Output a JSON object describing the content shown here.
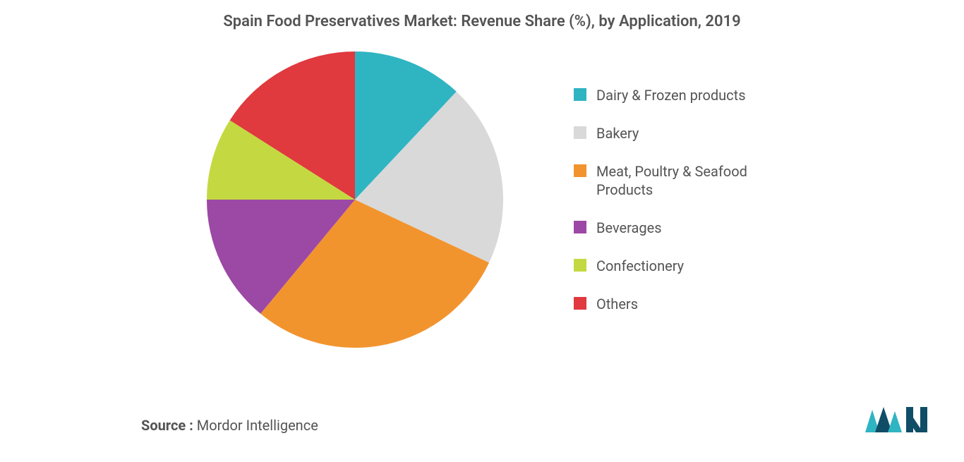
{
  "chart": {
    "type": "pie",
    "title": "Spain Food Preservatives Market: Revenue Share (%), by Application, 2019",
    "title_fontsize": 22,
    "title_color": "#545454",
    "background_color": "#ffffff",
    "pie_radius": 210,
    "slices": [
      {
        "label": "Dairy & Frozen products",
        "value": 12,
        "color": "#2fb4c2"
      },
      {
        "label": "Bakery",
        "value": 20,
        "color": "#d9d9d9"
      },
      {
        "label": "Meat, Poultry & Seafood Products",
        "value": 29,
        "color": "#f2942e"
      },
      {
        "label": "Beverages",
        "value": 14,
        "color": "#9c48a5"
      },
      {
        "label": "Confectionery",
        "value": 9,
        "color": "#c4d941"
      },
      {
        "label": "Others",
        "value": 16,
        "color": "#e0393e"
      }
    ],
    "legend": {
      "position": "right",
      "fontsize": 20,
      "text_color": "#545454",
      "swatch_size": 18,
      "gap": 28
    }
  },
  "source": {
    "label": "Source :",
    "value": " Mordor Intelligence",
    "fontsize": 20,
    "color": "#545454"
  },
  "logo": {
    "brand": "Mordor Intelligence",
    "colors": {
      "primary": "#104d66",
      "accent": "#2fb4c2"
    }
  }
}
